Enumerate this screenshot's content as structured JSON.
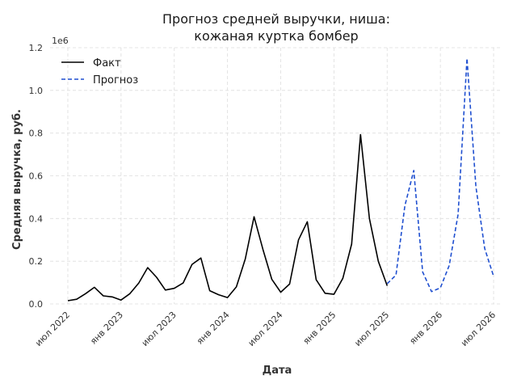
{
  "chart_data": {
    "type": "line",
    "title_line1": "Прогноз средней выручки, ниша:",
    "title_line2": "кожаная куртка бомбер",
    "xlabel": "Дата",
    "ylabel": "Средняя выручка, руб.",
    "y_multiplier": "1e6",
    "ylim": [
      0,
      1.2
    ],
    "y_ticks": [
      "0.0",
      "0.2",
      "0.4",
      "0.6",
      "0.8",
      "1.0",
      "1.2"
    ],
    "x_ticks": [
      {
        "label": "июл 2022",
        "date": "2022-07"
      },
      {
        "label": "янв 2023",
        "date": "2023-01"
      },
      {
        "label": "июл 2023",
        "date": "2023-07"
      },
      {
        "label": "янв 2024",
        "date": "2024-01"
      },
      {
        "label": "июл 2024",
        "date": "2024-07"
      },
      {
        "label": "янв 2025",
        "date": "2025-01"
      },
      {
        "label": "июл 2025",
        "date": "2025-07"
      },
      {
        "label": "янв 2026",
        "date": "2026-01"
      },
      {
        "label": "июл 2026",
        "date": "2026-07"
      }
    ],
    "grid": true,
    "legend_position": "top-left",
    "series": [
      {
        "name": "Факт",
        "color": "#000000",
        "style": "solid",
        "x": [
          "2022-07",
          "2022-08",
          "2022-09",
          "2022-10",
          "2022-11",
          "2022-12",
          "2023-01",
          "2023-02",
          "2023-03",
          "2023-04",
          "2023-05",
          "2023-06",
          "2023-07",
          "2023-08",
          "2023-09",
          "2023-10",
          "2023-11",
          "2023-12",
          "2024-01",
          "2024-02",
          "2024-03",
          "2024-04",
          "2024-05",
          "2024-06",
          "2024-07",
          "2024-08",
          "2024-09",
          "2024-10",
          "2024-11",
          "2024-12",
          "2025-01",
          "2025-02",
          "2025-03",
          "2025-04",
          "2025-05",
          "2025-06",
          "2025-07"
        ],
        "y": [
          0.015,
          0.022,
          0.048,
          0.078,
          0.038,
          0.033,
          0.018,
          0.048,
          0.098,
          0.17,
          0.125,
          0.065,
          0.073,
          0.098,
          0.185,
          0.215,
          0.062,
          0.043,
          0.03,
          0.08,
          0.21,
          0.408,
          0.255,
          0.115,
          0.055,
          0.093,
          0.3,
          0.385,
          0.113,
          0.05,
          0.045,
          0.12,
          0.28,
          0.793,
          0.4,
          0.2,
          0.085
        ]
      },
      {
        "name": "Прогноз",
        "color": "#1f4fd0",
        "style": "dashed",
        "x": [
          "2025-07",
          "2025-08",
          "2025-09",
          "2025-10",
          "2025-11",
          "2025-12",
          "2026-01",
          "2026-02",
          "2026-03",
          "2026-04",
          "2026-05",
          "2026-06",
          "2026-07"
        ],
        "y": [
          0.095,
          0.135,
          0.46,
          0.625,
          0.15,
          0.058,
          0.075,
          0.18,
          0.42,
          1.15,
          0.55,
          0.26,
          0.13
        ]
      }
    ]
  }
}
